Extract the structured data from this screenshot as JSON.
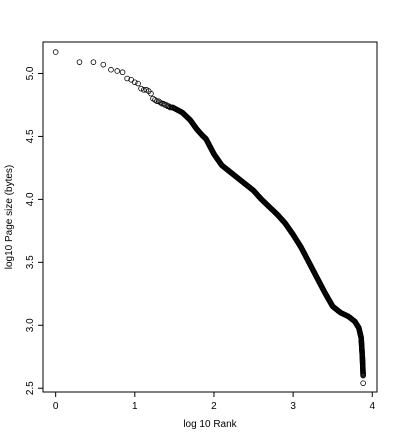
{
  "chart_data": {
    "type": "scatter",
    "xlabel": "log 10 Rank",
    "ylabel": "log10 Page size (bytes)",
    "xlim": [
      -0.16,
      4.06
    ],
    "ylim": [
      2.47,
      5.25
    ],
    "xticks": [
      0,
      1,
      2,
      3,
      4
    ],
    "yticks": [
      2.5,
      3.0,
      3.5,
      4.0,
      4.5,
      5.0
    ],
    "xtick_labels": [
      "0",
      "1",
      "2",
      "3",
      "4"
    ],
    "ytick_labels": [
      "2.5",
      "3.0",
      "3.5",
      "4.0",
      "4.5",
      "5.0"
    ],
    "grid": false,
    "legend": "none",
    "marker": "open-circle",
    "point_color": "#000000",
    "discrete_points": [
      [
        0.0,
        5.17
      ],
      [
        0.301,
        5.09
      ],
      [
        0.477,
        5.09
      ],
      [
        0.602,
        5.07
      ],
      [
        0.699,
        5.03
      ],
      [
        0.778,
        5.02
      ],
      [
        0.845,
        5.01
      ],
      [
        0.903,
        4.96
      ],
      [
        0.954,
        4.95
      ],
      [
        1.0,
        4.93
      ],
      [
        1.041,
        4.92
      ],
      [
        1.079,
        4.88
      ],
      [
        1.114,
        4.87
      ],
      [
        1.146,
        4.87
      ],
      [
        1.176,
        4.86
      ],
      [
        1.204,
        4.84
      ],
      [
        1.23,
        4.8
      ],
      [
        1.255,
        4.79
      ],
      [
        1.279,
        4.78
      ],
      [
        1.301,
        4.78
      ],
      [
        1.322,
        4.77
      ],
      [
        1.342,
        4.76
      ],
      [
        1.362,
        4.76
      ],
      [
        1.38,
        4.75
      ],
      [
        1.398,
        4.75
      ],
      [
        1.415,
        4.74
      ],
      [
        1.431,
        4.74
      ],
      [
        1.447,
        4.73
      ],
      [
        1.462,
        4.73
      ],
      [
        1.477,
        4.73
      ]
    ],
    "curve": [
      [
        1.48,
        4.73
      ],
      [
        1.6,
        4.69
      ],
      [
        1.7,
        4.63
      ],
      [
        1.78,
        4.56
      ],
      [
        1.85,
        4.51
      ],
      [
        1.9,
        4.48
      ],
      [
        2.0,
        4.36
      ],
      [
        2.1,
        4.27
      ],
      [
        2.2,
        4.22
      ],
      [
        2.3,
        4.17
      ],
      [
        2.4,
        4.12
      ],
      [
        2.5,
        4.07
      ],
      [
        2.6,
        4.0
      ],
      [
        2.7,
        3.94
      ],
      [
        2.8,
        3.88
      ],
      [
        2.9,
        3.81
      ],
      [
        3.0,
        3.72
      ],
      [
        3.1,
        3.62
      ],
      [
        3.2,
        3.5
      ],
      [
        3.3,
        3.38
      ],
      [
        3.4,
        3.26
      ],
      [
        3.5,
        3.15
      ],
      [
        3.6,
        3.1
      ],
      [
        3.7,
        3.07
      ],
      [
        3.78,
        3.03
      ],
      [
        3.83,
        2.98
      ],
      [
        3.86,
        2.9
      ],
      [
        3.875,
        2.75
      ],
      [
        3.885,
        2.6
      ]
    ],
    "curve_extra_points": [
      [
        3.885,
        2.54
      ]
    ]
  }
}
